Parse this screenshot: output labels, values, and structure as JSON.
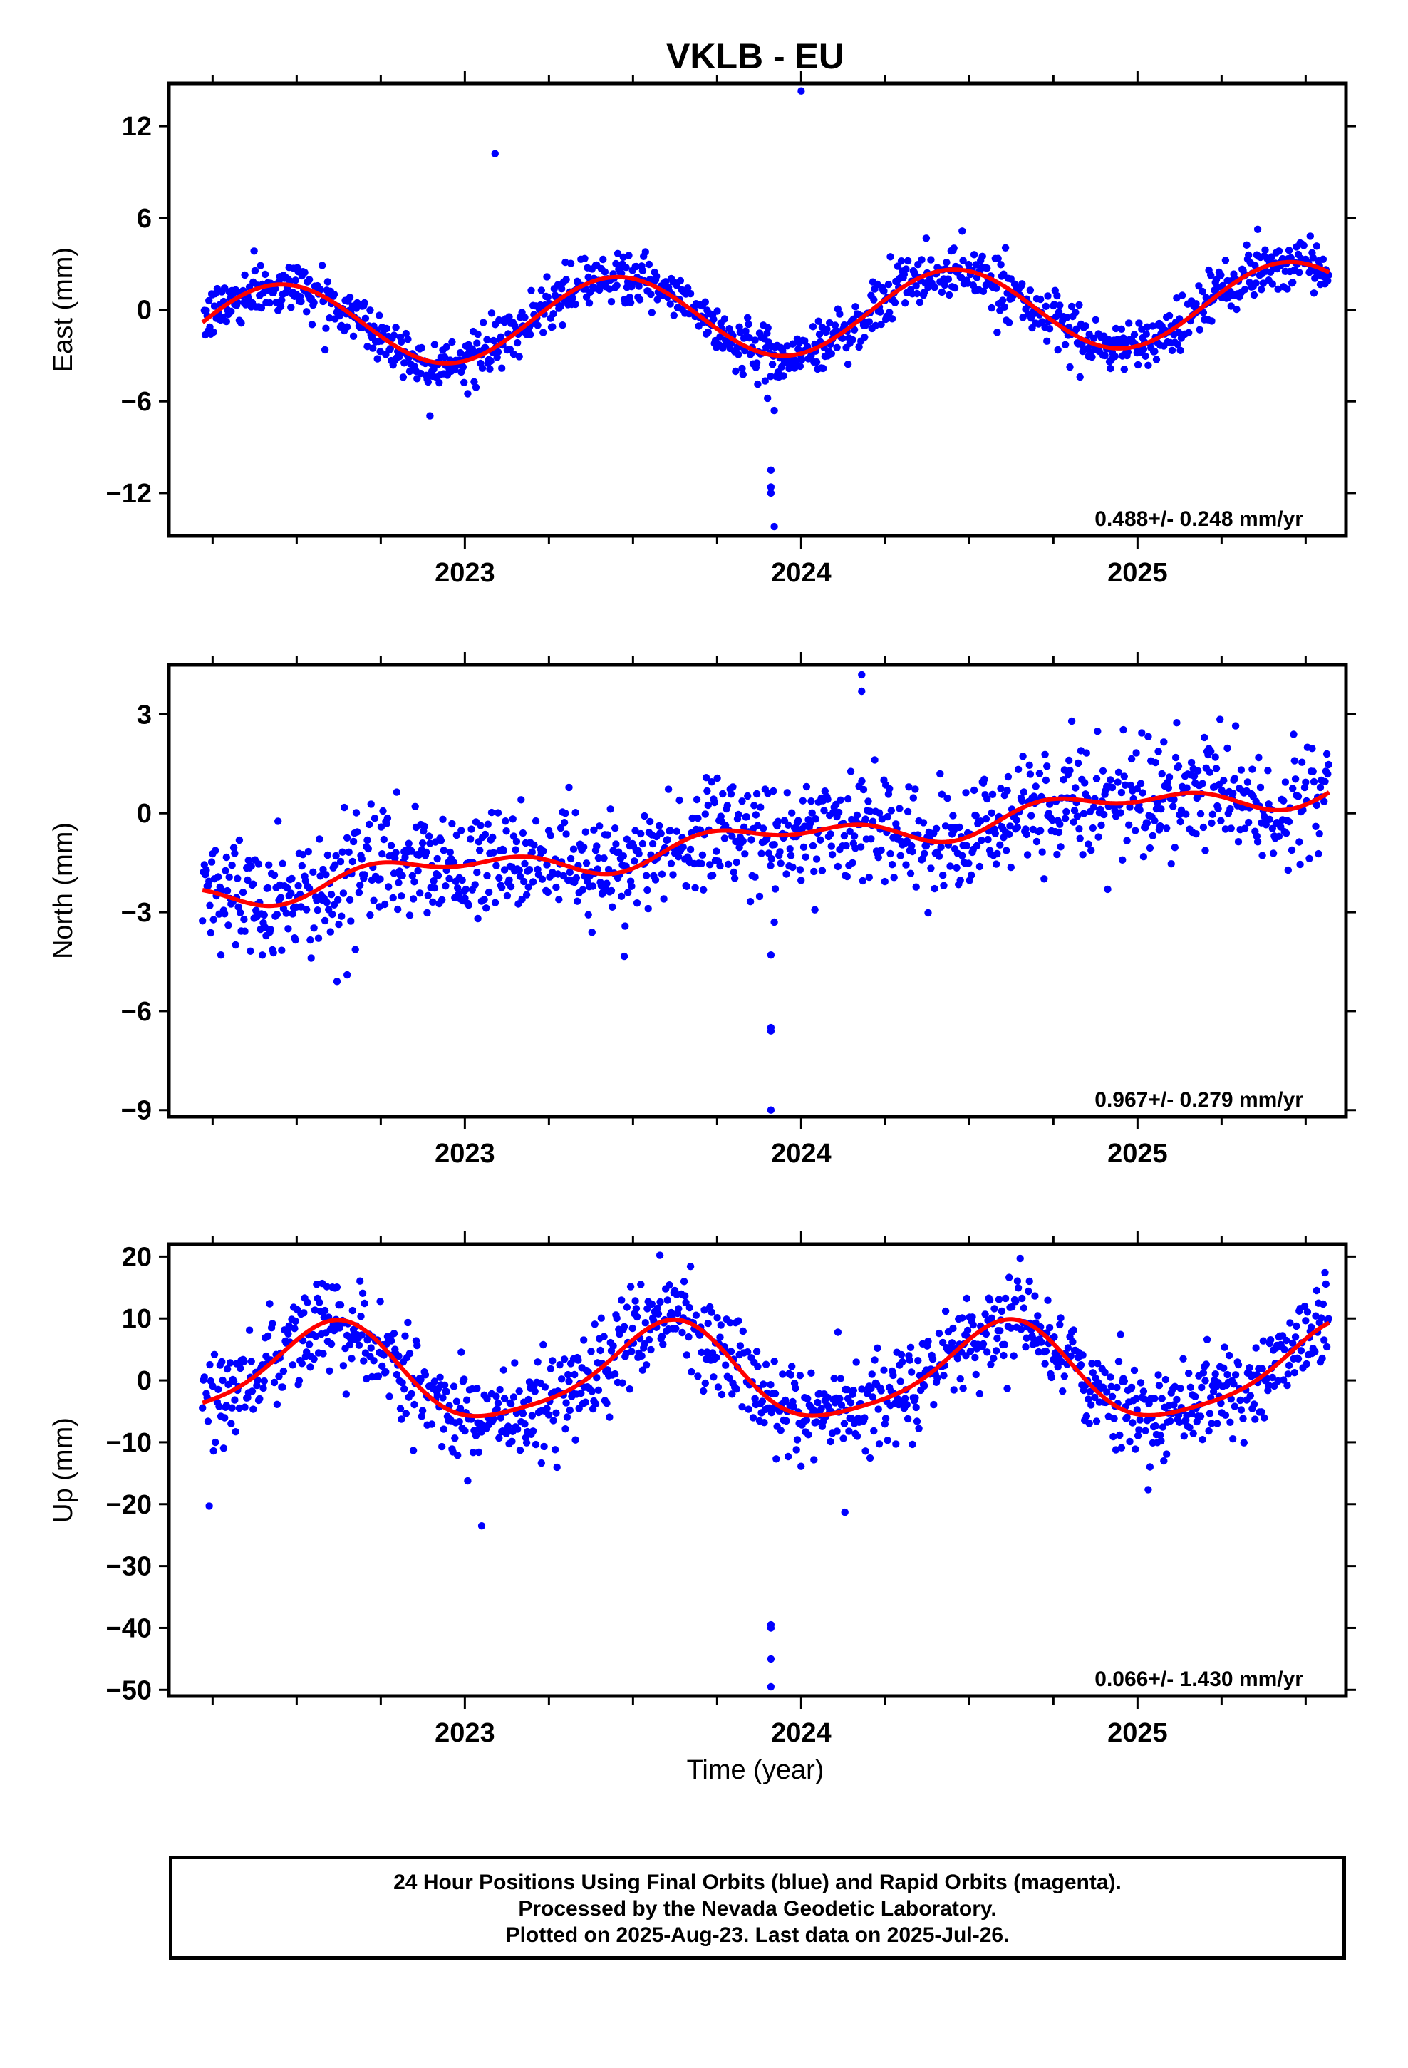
{
  "title": "VKLB - EU",
  "xlabel": "Time (year)",
  "footer": {
    "line1": "24 Hour Positions Using Final Orbits (blue) and Rapid Orbits (magenta).",
    "line2": "Processed by the Nevada Geodetic Laboratory.",
    "line3": "Plotted on 2025-Aug-23. Last data on 2025-Jul-26."
  },
  "colors": {
    "points": "#0000ff",
    "fit": "#ff0000",
    "axes": "#000000"
  },
  "chart_data": [
    {
      "type": "scatter",
      "component": "East",
      "ylabel": "East (mm)",
      "rate_text": "0.488+/- 0.248 mm/yr",
      "xlim": [
        2022.12,
        2025.62
      ],
      "ylim": [
        -14.8,
        14.8
      ],
      "yticks": [
        12,
        6,
        0,
        -6,
        -12
      ],
      "ytick_labels": [
        "12",
        "6",
        "0",
        "−6",
        "−12"
      ],
      "xticks": [
        2023,
        2024,
        2025
      ],
      "xtick_labels": [
        "2023",
        "2024",
        "2025"
      ],
      "grid": false,
      "trend": {
        "start": 2022.22,
        "end": 2025.57,
        "slope": 0.488,
        "intercept": -0.3,
        "annual": {
          "amplitude": 2.7,
          "peak": 0.45
        },
        "semiannual": {
          "amplitude": 0.0,
          "peak": 0.0
        }
      },
      "noise_sd": 0.85,
      "outliers": [
        {
          "x": 2023.09,
          "y": 10.2
        },
        {
          "x": 2024.0,
          "y": 14.3
        },
        {
          "x": 2023.91,
          "y": -10.5
        },
        {
          "x": 2023.91,
          "y": -11.6
        },
        {
          "x": 2023.91,
          "y": -12.0
        },
        {
          "x": 2023.92,
          "y": -14.2
        },
        {
          "x": 2023.9,
          "y": -5.8
        },
        {
          "x": 2023.92,
          "y": -6.6
        }
      ]
    },
    {
      "type": "scatter",
      "component": "North",
      "ylabel": "North (mm)",
      "rate_text": "0.967+/- 0.279 mm/yr",
      "xlim": [
        2022.12,
        2025.62
      ],
      "ylim": [
        -9.2,
        4.5
      ],
      "yticks": [
        3,
        0,
        -3,
        -6,
        -9
      ],
      "ytick_labels": [
        "3",
        "0",
        "−3",
        "−6",
        "−9"
      ],
      "xticks": [
        2023,
        2024,
        2025
      ],
      "xtick_labels": [
        "2023",
        "2024",
        "2025"
      ],
      "grid": false,
      "trend": {
        "start": 2022.22,
        "end": 2025.57,
        "slope": 0.967,
        "intercept": -0.7,
        "annual": {
          "amplitude": 0.35,
          "peak": 0.9
        },
        "semiannual": {
          "amplitude": 0.25,
          "peak": 0.2
        }
      },
      "noise_sd": 0.85,
      "outliers": [
        {
          "x": 2023.91,
          "y": -9.0
        },
        {
          "x": 2023.91,
          "y": -6.5
        },
        {
          "x": 2023.91,
          "y": -6.6
        },
        {
          "x": 2023.91,
          "y": -4.3
        },
        {
          "x": 2023.92,
          "y": -3.3
        },
        {
          "x": 2022.65,
          "y": -4.9
        },
        {
          "x": 2022.62,
          "y": -5.1
        },
        {
          "x": 2024.18,
          "y": 4.2
        },
        {
          "x": 2024.18,
          "y": 3.7
        }
      ]
    },
    {
      "type": "scatter",
      "component": "Up",
      "ylabel": "Up (mm)",
      "rate_text": "0.066+/- 1.430 mm/yr",
      "xlim": [
        2022.12,
        2025.62
      ],
      "ylim": [
        -51,
        22
      ],
      "yticks": [
        20,
        10,
        0,
        -10,
        -20,
        -30,
        -40,
        -50
      ],
      "ytick_labels": [
        "20",
        "10",
        "0",
        "−10",
        "−20",
        "−30",
        "−40",
        "−50"
      ],
      "xticks": [
        2023,
        2024,
        2025
      ],
      "xtick_labels": [
        "2023",
        "2024",
        "2025"
      ],
      "grid": false,
      "trend": {
        "start": 2022.22,
        "end": 2025.57,
        "slope": 0.066,
        "intercept": 1.0,
        "annual": {
          "amplitude": 7.5,
          "peak": 0.6
        },
        "semiannual": {
          "amplitude": 1.5,
          "peak": 0.15
        }
      },
      "noise_sd": 3.8,
      "outliers": [
        {
          "x": 2023.91,
          "y": -39.5
        },
        {
          "x": 2023.91,
          "y": -40.0
        },
        {
          "x": 2023.91,
          "y": -45.0
        },
        {
          "x": 2023.91,
          "y": -49.5
        },
        {
          "x": 2022.24,
          "y": -20.3
        },
        {
          "x": 2023.05,
          "y": -23.5
        },
        {
          "x": 2023.58,
          "y": 20.2
        },
        {
          "x": 2024.13,
          "y": -21.3
        }
      ]
    }
  ]
}
